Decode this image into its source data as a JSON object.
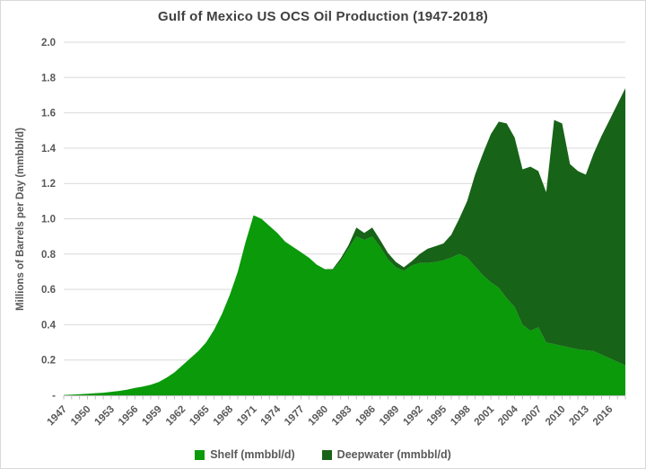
{
  "title": "Gulf of Mexico US OCS Oil Production (1947-2018)",
  "y_axis": {
    "title": "Millions of Barrels per Day (mmbbl/d)",
    "tick_labels": [
      "-",
      "0.2",
      "0.4",
      "0.6",
      "0.8",
      "1.0",
      "1.2",
      "1.4",
      "1.6",
      "1.8",
      "2.0"
    ],
    "min": 0,
    "max": 2.0,
    "step": 0.2
  },
  "x_axis": {
    "tick_labels": [
      "1947",
      "1950",
      "1953",
      "1956",
      "1959",
      "1962",
      "1965",
      "1968",
      "1971",
      "1974",
      "1977",
      "1980",
      "1983",
      "1986",
      "1989",
      "1992",
      "1995",
      "1998",
      "2001",
      "2004",
      "2007",
      "2010",
      "2013",
      "2016"
    ],
    "label_interval_years": 3,
    "rotation_degrees": 45
  },
  "legend": {
    "position": "bottom",
    "items": [
      {
        "label": "Shelf (mmbbl/d)",
        "color": "#0a9a0a"
      },
      {
        "label": "Deepwater (mmbbl/d)",
        "color": "#176317"
      }
    ]
  },
  "colors": {
    "title": "#404040",
    "labels": "#595959",
    "gridline": "#d9d9d9",
    "axis": "#bfbfbf",
    "background": "#ffffff",
    "shelf": "#0a9a0a",
    "deepwater": "#176317"
  },
  "chart_data": {
    "type": "area",
    "stacked": true,
    "title": "Gulf of Mexico US OCS Oil Production (1947-2018)",
    "xlabel": "",
    "ylabel": "Millions of Barrels per Day (mmbbl/d)",
    "ylim": [
      0,
      2.0
    ],
    "grid": true,
    "legend_position": "bottom",
    "x": [
      1947,
      1948,
      1949,
      1950,
      1951,
      1952,
      1953,
      1954,
      1955,
      1956,
      1957,
      1958,
      1959,
      1960,
      1961,
      1962,
      1963,
      1964,
      1965,
      1966,
      1967,
      1968,
      1969,
      1970,
      1971,
      1972,
      1973,
      1974,
      1975,
      1976,
      1977,
      1978,
      1979,
      1980,
      1981,
      1982,
      1983,
      1984,
      1985,
      1986,
      1987,
      1988,
      1989,
      1990,
      1991,
      1992,
      1993,
      1994,
      1995,
      1996,
      1997,
      1998,
      1999,
      2000,
      2001,
      2002,
      2003,
      2004,
      2005,
      2006,
      2007,
      2008,
      2009,
      2010,
      2011,
      2012,
      2013,
      2014,
      2015,
      2016,
      2017,
      2018
    ],
    "series": [
      {
        "name": "Shelf (mmbbl/d)",
        "color": "#0a9a0a",
        "values": [
          0.002,
          0.004,
          0.006,
          0.009,
          0.012,
          0.015,
          0.02,
          0.025,
          0.032,
          0.042,
          0.05,
          0.06,
          0.075,
          0.1,
          0.13,
          0.17,
          0.21,
          0.25,
          0.3,
          0.37,
          0.46,
          0.57,
          0.7,
          0.87,
          1.02,
          1.0,
          0.96,
          0.92,
          0.87,
          0.84,
          0.81,
          0.78,
          0.74,
          0.715,
          0.71,
          0.76,
          0.83,
          0.9,
          0.88,
          0.9,
          0.84,
          0.77,
          0.725,
          0.705,
          0.735,
          0.75,
          0.75,
          0.755,
          0.765,
          0.78,
          0.8,
          0.78,
          0.73,
          0.68,
          0.64,
          0.61,
          0.55,
          0.5,
          0.4,
          0.365,
          0.385,
          0.3,
          0.29,
          0.28,
          0.27,
          0.26,
          0.255,
          0.25,
          0.23,
          0.21,
          0.19,
          0.17
        ]
      },
      {
        "name": "Deepwater (mmbbl/d)",
        "color": "#176317",
        "values": [
          0,
          0,
          0,
          0,
          0,
          0,
          0,
          0,
          0,
          0,
          0,
          0,
          0,
          0,
          0,
          0,
          0,
          0,
          0,
          0,
          0,
          0,
          0,
          0,
          0,
          0,
          0,
          0,
          0,
          0,
          0,
          0,
          0,
          0,
          0.005,
          0.015,
          0.02,
          0.05,
          0.04,
          0.05,
          0.04,
          0.035,
          0.03,
          0.02,
          0.025,
          0.05,
          0.08,
          0.09,
          0.095,
          0.13,
          0.2,
          0.32,
          0.52,
          0.69,
          0.84,
          0.94,
          0.99,
          0.96,
          0.88,
          0.93,
          0.885,
          0.85,
          1.27,
          1.26,
          1.04,
          1.01,
          0.995,
          1.12,
          1.24,
          1.35,
          1.46,
          1.57
        ]
      }
    ]
  }
}
